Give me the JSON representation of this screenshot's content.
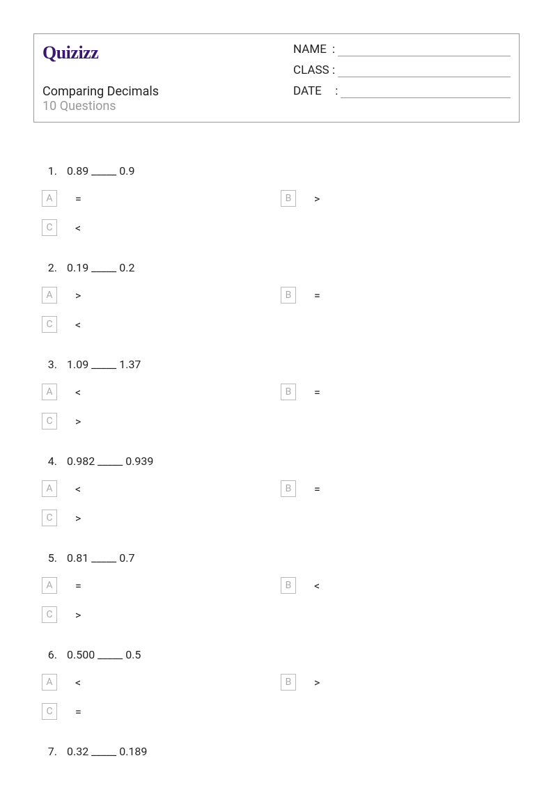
{
  "logo_text": "Quizizz",
  "quiz_title": "Comparing Decimals",
  "question_count": "10 Questions",
  "fields": {
    "name": "NAME",
    "class": "CLASS",
    "date": "DATE"
  },
  "colors": {
    "logo": "#3a1670",
    "muted": "#999999",
    "text": "#222222",
    "border": "#999999",
    "choice_border": "#bbbbbb",
    "choice_letter": "#aaaaaa"
  },
  "questions": [
    {
      "num": "1.",
      "text": "0.89 _____ 0.9",
      "a": "=",
      "b": ">",
      "c": "<"
    },
    {
      "num": "2.",
      "text": "0.19 _____ 0.2",
      "a": ">",
      "b": "=",
      "c": "<"
    },
    {
      "num": "3.",
      "text": "1.09 _____ 1.37",
      "a": "<",
      "b": "=",
      "c": ">"
    },
    {
      "num": "4.",
      "text": "0.982 _____ 0.939",
      "a": "<",
      "b": "=",
      "c": ">"
    },
    {
      "num": "5.",
      "text": "0.81 _____ 0.7",
      "a": "=",
      "b": "<",
      "c": ">"
    },
    {
      "num": "6.",
      "text": "0.500 _____ 0.5",
      "a": "<",
      "b": ">",
      "c": "="
    },
    {
      "num": "7.",
      "text": "0.32 _____ 0.189",
      "a": "",
      "b": "",
      "c": ""
    }
  ]
}
